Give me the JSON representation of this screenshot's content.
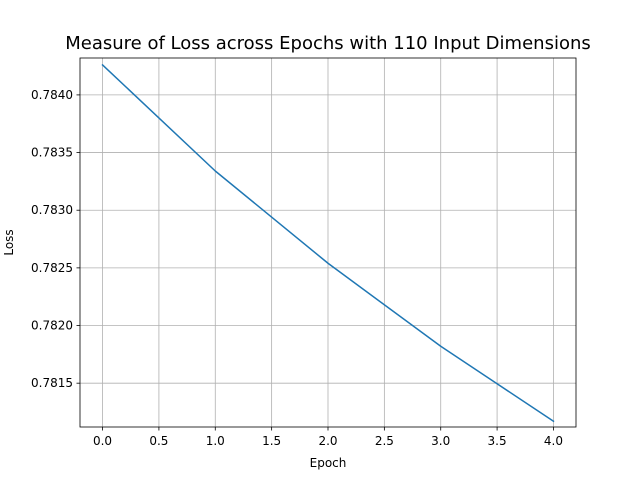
{
  "chart_data": {
    "type": "line",
    "title": "Measure of Loss across Epochs with 110 Input Dimensions",
    "xlabel": "Epoch",
    "ylabel": "Loss",
    "x": [
      0,
      1,
      2,
      3,
      4
    ],
    "series": [
      {
        "values": [
          0.78426,
          0.78334,
          0.78254,
          0.78182,
          0.78117
        ],
        "color": "#1f77b4"
      }
    ],
    "xlim": [
      -0.2,
      4.2
    ],
    "ylim": [
      0.78112,
      0.78432
    ],
    "xticks": [
      0.0,
      0.5,
      1.0,
      1.5,
      2.0,
      2.5,
      3.0,
      3.5,
      4.0
    ],
    "xtick_labels": [
      "0.0",
      "0.5",
      "1.0",
      "1.5",
      "2.0",
      "2.5",
      "3.0",
      "3.5",
      "4.0"
    ],
    "yticks": [
      0.7815,
      0.782,
      0.7825,
      0.783,
      0.7835,
      0.784
    ],
    "ytick_labels": [
      "0.7815",
      "0.7820",
      "0.7825",
      "0.7830",
      "0.7835",
      "0.7840"
    ],
    "grid": true
  }
}
